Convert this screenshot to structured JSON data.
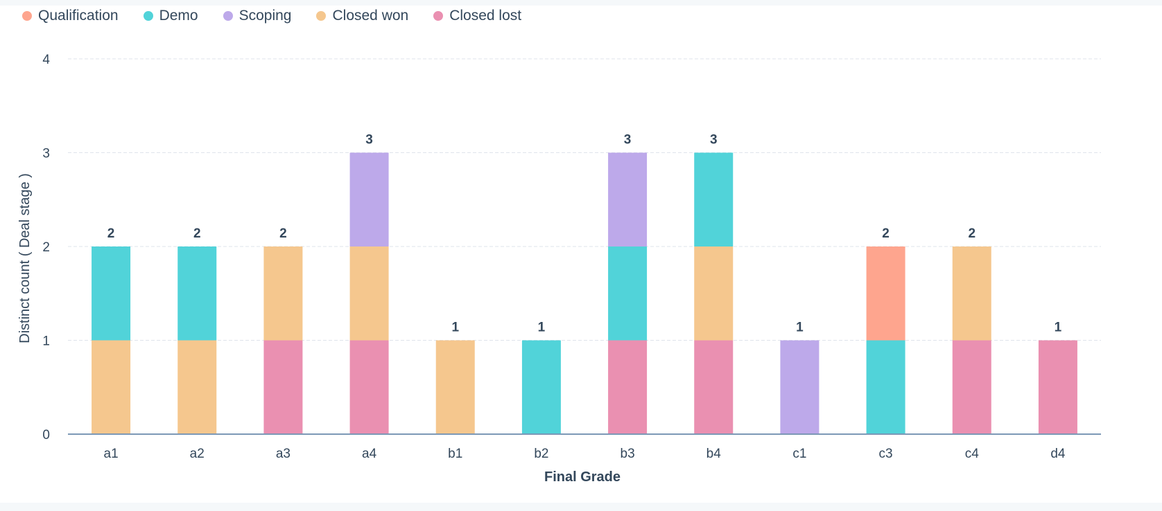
{
  "chart_data": {
    "type": "bar",
    "stacked": true,
    "xlabel": "Final Grade",
    "ylabel": "Distinct count ( Deal stage )",
    "ylim": [
      0,
      4
    ],
    "yticks": [
      "0",
      "1",
      "2",
      "3",
      "4"
    ],
    "grid": true,
    "legend_position": "top-left",
    "categories": [
      "a1",
      "a2",
      "a3",
      "a4",
      "b1",
      "b2",
      "b3",
      "b4",
      "c1",
      "c3",
      "c4",
      "d4"
    ],
    "totals": [
      2,
      2,
      2,
      3,
      1,
      1,
      3,
      3,
      1,
      2,
      2,
      1
    ],
    "series": [
      {
        "name": "Closed lost",
        "color": "#ea90b1",
        "values": [
          0,
          0,
          1,
          1,
          0,
          0,
          1,
          1,
          0,
          0,
          1,
          1
        ]
      },
      {
        "name": "Closed won",
        "color": "#f5c78e",
        "values": [
          1,
          1,
          1,
          1,
          1,
          0,
          0,
          1,
          0,
          0,
          1,
          0
        ]
      },
      {
        "name": "Demo",
        "color": "#51d3d9",
        "values": [
          1,
          1,
          0,
          0,
          0,
          1,
          1,
          1,
          0,
          1,
          0,
          0
        ]
      },
      {
        "name": "Scoping",
        "color": "#bda9ea",
        "values": [
          0,
          0,
          0,
          1,
          0,
          0,
          1,
          0,
          1,
          0,
          0,
          0
        ]
      },
      {
        "name": "Qualification",
        "color": "#fea58e",
        "values": [
          0,
          0,
          0,
          0,
          0,
          0,
          0,
          0,
          0,
          1,
          0,
          0
        ]
      }
    ],
    "legend": [
      {
        "name": "Qualification",
        "color": "#fea58e"
      },
      {
        "name": "Demo",
        "color": "#51d3d9"
      },
      {
        "name": "Scoping",
        "color": "#bda9ea"
      },
      {
        "name": "Closed won",
        "color": "#f5c78e"
      },
      {
        "name": "Closed lost",
        "color": "#ea90b1"
      }
    ]
  }
}
